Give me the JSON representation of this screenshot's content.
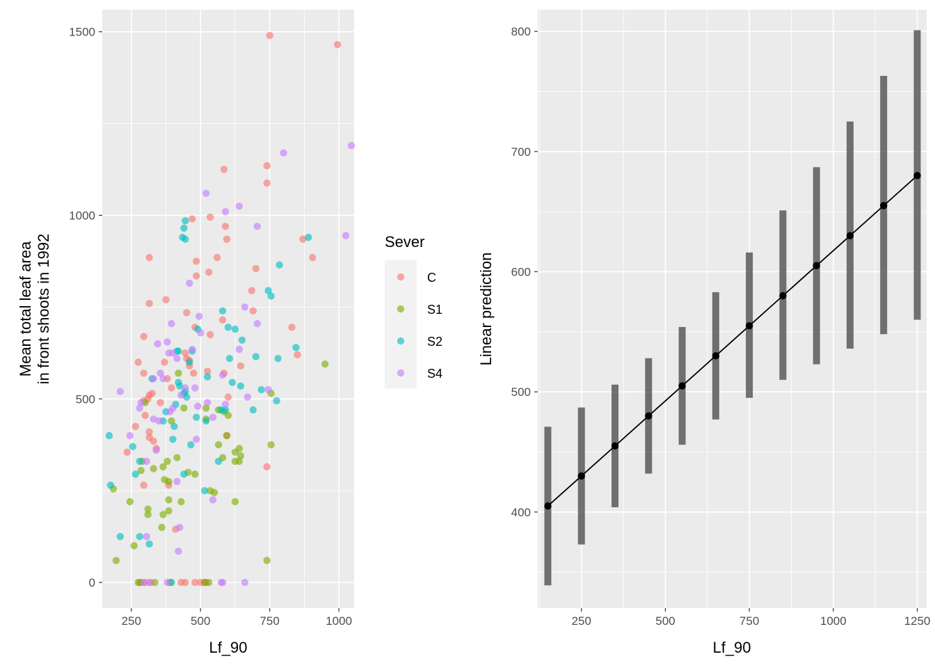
{
  "chart_data": [
    {
      "type": "scatter",
      "xlabel": "Lf_90",
      "ylabel_lines": [
        "Mean total leaf area",
        "in front shoots in 1992"
      ],
      "xlim": [
        145,
        1055
      ],
      "ylim": [
        -70,
        1560
      ],
      "xticks": [
        250,
        500,
        750,
        1000
      ],
      "xtick_labels": [
        "250",
        "500",
        "750",
        "1000"
      ],
      "yticks": [
        0,
        500,
        1000,
        1500
      ],
      "ytick_labels": [
        "0",
        "500",
        "1000",
        "1500"
      ],
      "legend": {
        "title": "Sever",
        "placement": "right",
        "entries": [
          {
            "name": "C",
            "color": "#F8766D"
          },
          {
            "name": "S1",
            "color": "#7CAE00"
          },
          {
            "name": "S2",
            "color": "#00BFC4"
          },
          {
            "name": "S4",
            "color": "#C77CFF"
          }
        ]
      },
      "series": [
        {
          "name": "C",
          "color": "#F8766D",
          "points": [
            [
              750,
              1490
            ],
            [
              995,
              1465
            ],
            [
              585,
              1125
            ],
            [
              740,
              1135
            ],
            [
              740,
              1088
            ],
            [
              470,
              990
            ],
            [
              535,
              995
            ],
            [
              590,
              970
            ],
            [
              870,
              935
            ],
            [
              595,
              935
            ],
            [
              315,
              885
            ],
            [
              485,
              875
            ],
            [
              560,
              885
            ],
            [
              905,
              885
            ],
            [
              530,
              845
            ],
            [
              485,
              835
            ],
            [
              700,
              855
            ],
            [
              685,
              795
            ],
            [
              315,
              760
            ],
            [
              375,
              770
            ],
            [
              450,
              735
            ],
            [
              690,
              740
            ],
            [
              580,
              715
            ],
            [
              480,
              695
            ],
            [
              830,
              695
            ],
            [
              295,
              670
            ],
            [
              535,
              675
            ],
            [
              275,
              600
            ],
            [
              370,
              600
            ],
            [
              445,
              625
            ],
            [
              450,
              610
            ],
            [
              460,
              605
            ],
            [
              850,
              620
            ],
            [
              460,
              590
            ],
            [
              645,
              590
            ],
            [
              475,
              570
            ],
            [
              295,
              570
            ],
            [
              380,
              555
            ],
            [
              395,
              530
            ],
            [
              525,
              575
            ],
            [
              585,
              570
            ],
            [
              315,
              510
            ],
            [
              325,
              515
            ],
            [
              295,
              495
            ],
            [
              355,
              490
            ],
            [
              310,
              500
            ],
            [
              600,
              505
            ],
            [
              300,
              455
            ],
            [
              265,
              425
            ],
            [
              315,
              410
            ],
            [
              315,
              395
            ],
            [
              330,
              385
            ],
            [
              595,
              400
            ],
            [
              235,
              355
            ],
            [
              340,
              365
            ],
            [
              295,
              265
            ],
            [
              385,
              265
            ],
            [
              410,
              145
            ],
            [
              740,
              315
            ],
            [
              280,
              0
            ],
            [
              300,
              0
            ],
            [
              320,
              0
            ],
            [
              430,
              0
            ],
            [
              445,
              0
            ],
            [
              480,
              0
            ],
            [
              500,
              0
            ],
            [
              515,
              0
            ],
            [
              520,
              0
            ]
          ]
        },
        {
          "name": "S1",
          "color": "#7CAE00",
          "points": [
            [
              950,
              595
            ],
            [
              420,
              570
            ],
            [
              755,
              515
            ],
            [
              300,
              490
            ],
            [
              520,
              475
            ],
            [
              440,
              475
            ],
            [
              565,
              470
            ],
            [
              585,
              465
            ],
            [
              600,
              455
            ],
            [
              520,
              445
            ],
            [
              395,
              440
            ],
            [
              595,
              400
            ],
            [
              640,
              365
            ],
            [
              565,
              375
            ],
            [
              625,
              355
            ],
            [
              755,
              375
            ],
            [
              645,
              345
            ],
            [
              580,
              340
            ],
            [
              640,
              330
            ],
            [
              625,
              330
            ],
            [
              290,
              330
            ],
            [
              380,
              330
            ],
            [
              415,
              340
            ],
            [
              330,
              310
            ],
            [
              365,
              315
            ],
            [
              455,
              300
            ],
            [
              285,
              305
            ],
            [
              480,
              295
            ],
            [
              370,
              280
            ],
            [
              385,
              275
            ],
            [
              535,
              250
            ],
            [
              550,
              245
            ],
            [
              245,
              220
            ],
            [
              385,
              225
            ],
            [
              430,
              220
            ],
            [
              625,
              220
            ],
            [
              310,
              200
            ],
            [
              310,
              185
            ],
            [
              365,
              185
            ],
            [
              385,
              195
            ],
            [
              360,
              150
            ],
            [
              185,
              255
            ],
            [
              195,
              60
            ],
            [
              260,
              100
            ],
            [
              740,
              60
            ],
            [
              275,
              0
            ],
            [
              285,
              0
            ],
            [
              335,
              0
            ],
            [
              390,
              0
            ],
            [
              515,
              0
            ],
            [
              530,
              0
            ]
          ]
        },
        {
          "name": "S2",
          "color": "#00BFC4",
          "points": [
            [
              445,
              985
            ],
            [
              440,
              965
            ],
            [
              435,
              940
            ],
            [
              445,
              935
            ],
            [
              890,
              940
            ],
            [
              785,
              865
            ],
            [
              745,
              795
            ],
            [
              755,
              780
            ],
            [
              580,
              740
            ],
            [
              600,
              695
            ],
            [
              625,
              690
            ],
            [
              490,
              690
            ],
            [
              650,
              660
            ],
            [
              470,
              630
            ],
            [
              845,
              640
            ],
            [
              420,
              630
            ],
            [
              415,
              630
            ],
            [
              460,
              600
            ],
            [
              605,
              610
            ],
            [
              700,
              615
            ],
            [
              780,
              610
            ],
            [
              325,
              555
            ],
            [
              420,
              545
            ],
            [
              525,
              560
            ],
            [
              425,
              535
            ],
            [
              615,
              545
            ],
            [
              645,
              535
            ],
            [
              720,
              525
            ],
            [
              445,
              520
            ],
            [
              440,
              515
            ],
            [
              450,
              505
            ],
            [
              775,
              495
            ],
            [
              410,
              485
            ],
            [
              375,
              465
            ],
            [
              575,
              470
            ],
            [
              590,
              470
            ],
            [
              690,
              470
            ],
            [
              365,
              440
            ],
            [
              405,
              425
            ],
            [
              485,
              450
            ],
            [
              520,
              440
            ],
            [
              400,
              390
            ],
            [
              170,
              400
            ],
            [
              255,
              370
            ],
            [
              465,
              375
            ],
            [
              565,
              330
            ],
            [
              280,
              330
            ],
            [
              440,
              295
            ],
            [
              265,
              295
            ],
            [
              175,
              265
            ],
            [
              515,
              250
            ],
            [
              210,
              125
            ],
            [
              280,
              125
            ],
            [
              315,
              105
            ],
            [
              395,
              0
            ]
          ]
        },
        {
          "name": "S4",
          "color": "#C77CFF",
          "points": [
            [
              1045,
              1190
            ],
            [
              800,
              1170
            ],
            [
              520,
              1060
            ],
            [
              640,
              1025
            ],
            [
              590,
              1010
            ],
            [
              705,
              970
            ],
            [
              1025,
              945
            ],
            [
              460,
              815
            ],
            [
              495,
              725
            ],
            [
              660,
              750
            ],
            [
              395,
              705
            ],
            [
              705,
              705
            ],
            [
              500,
              680
            ],
            [
              380,
              655
            ],
            [
              640,
              635
            ],
            [
              345,
              650
            ],
            [
              470,
              635
            ],
            [
              385,
              625
            ],
            [
              400,
              625
            ],
            [
              415,
              610
            ],
            [
              355,
              570
            ],
            [
              580,
              565
            ],
            [
              330,
              555
            ],
            [
              365,
              555
            ],
            [
              210,
              520
            ],
            [
              430,
              510
            ],
            [
              445,
              530
            ],
            [
              480,
              530
            ],
            [
              670,
              505
            ],
            [
              745,
              525
            ],
            [
              400,
              475
            ],
            [
              490,
              480
            ],
            [
              525,
              490
            ],
            [
              285,
              490
            ],
            [
              590,
              485
            ],
            [
              280,
              475
            ],
            [
              390,
              465
            ],
            [
              330,
              445
            ],
            [
              350,
              440
            ],
            [
              545,
              450
            ],
            [
              245,
              400
            ],
            [
              485,
              390
            ],
            [
              340,
              360
            ],
            [
              415,
              275
            ],
            [
              305,
              330
            ],
            [
              545,
              225
            ],
            [
              425,
              150
            ],
            [
              305,
              125
            ],
            [
              420,
              85
            ],
            [
              295,
              0
            ],
            [
              315,
              0
            ],
            [
              380,
              0
            ],
            [
              575,
              0
            ],
            [
              580,
              0
            ],
            [
              660,
              0
            ]
          ]
        }
      ]
    },
    {
      "type": "line",
      "xlabel": "Lf_90",
      "ylabel": "Linear prediction",
      "xlim": [
        120,
        1278
      ],
      "ylim": [
        320,
        818
      ],
      "xticks": [
        250,
        500,
        750,
        1000,
        1250
      ],
      "xtick_labels": [
        "250",
        "500",
        "750",
        "1000",
        "1250"
      ],
      "yticks": [
        400,
        500,
        600,
        700,
        800
      ],
      "ytick_labels": [
        "400",
        "500",
        "600",
        "700",
        "800"
      ],
      "x": [
        150,
        250,
        350,
        450,
        550,
        650,
        750,
        850,
        950,
        1050,
        1150,
        1250
      ],
      "y": [
        405,
        430,
        455,
        480,
        505,
        530,
        555,
        580,
        605,
        630,
        655,
        680
      ],
      "lower": [
        339,
        373,
        404,
        432,
        456,
        477,
        495,
        510,
        523,
        536,
        548,
        560
      ],
      "upper": [
        471,
        487,
        506,
        528,
        554,
        583,
        616,
        651,
        687,
        725,
        763,
        801
      ]
    }
  ]
}
